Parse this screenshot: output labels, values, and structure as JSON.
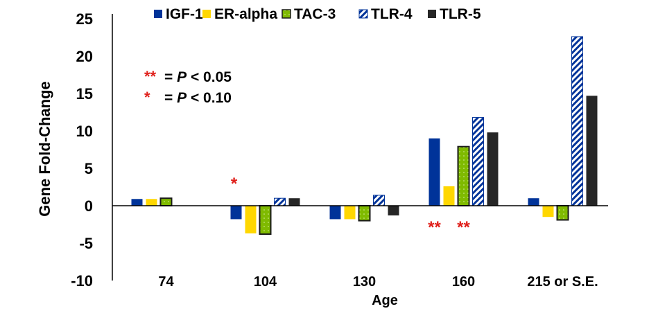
{
  "chart_data": {
    "type": "bar",
    "xlabel": "Age",
    "ylabel": "Gene Fold-Change",
    "ylim": [
      -10,
      25
    ],
    "yticks": [
      25,
      20,
      15,
      10,
      5,
      0,
      -5,
      -10
    ],
    "categories": [
      "74",
      "104",
      "130",
      "160",
      "215 or S.E."
    ],
    "legend_position": "top",
    "grid": false,
    "series": [
      {
        "name": "IGF-1",
        "color": "#003399",
        "pattern": "solid",
        "values": [
          0.9,
          -1.8,
          -1.8,
          9.0,
          1.0
        ]
      },
      {
        "name": "ER-alpha",
        "color": "#ffd700",
        "pattern": "solid",
        "values": [
          0.9,
          -3.7,
          -1.8,
          2.6,
          -1.5
        ]
      },
      {
        "name": "TAC-3",
        "color": "#7fba00",
        "pattern": "dotted",
        "values": [
          1.0,
          -3.8,
          -2.0,
          7.9,
          -1.9
        ]
      },
      {
        "name": "TLR-4",
        "color": "#003399",
        "pattern": "diagonal-stripes",
        "values": [
          null,
          1.0,
          1.4,
          11.8,
          22.6
        ]
      },
      {
        "name": "TLR-5",
        "color": "#262626",
        "pattern": "solid",
        "values": [
          null,
          1.0,
          -1.3,
          9.8,
          14.7
        ]
      }
    ],
    "significance": [
      {
        "category": "104",
        "series": "IGF-1",
        "mark": "*"
      },
      {
        "category": "160",
        "series": "IGF-1",
        "mark": "**"
      },
      {
        "category": "160",
        "series": "TAC-3",
        "mark": "**"
      }
    ],
    "annotation": [
      {
        "stars": "**",
        "text": "= P < 0.05"
      },
      {
        "stars": "*",
        "text": " = P < 0.10"
      }
    ],
    "star_color": "#e0201b"
  }
}
